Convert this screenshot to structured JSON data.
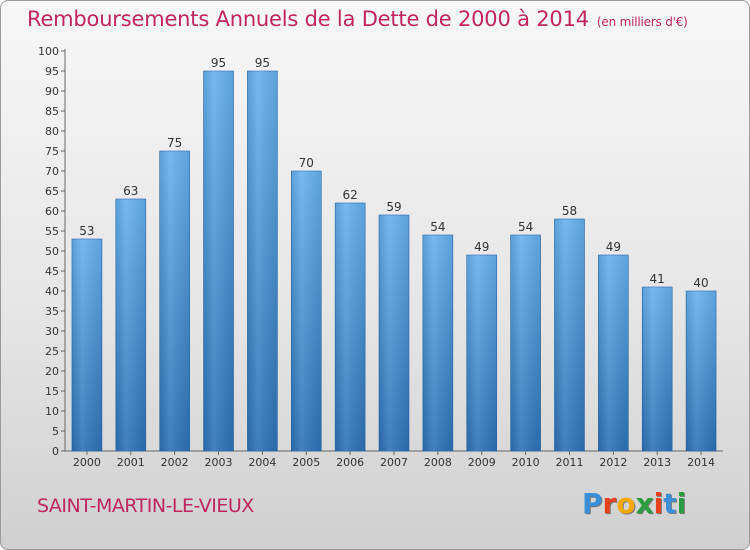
{
  "header": {
    "title": "Remboursements Annuels de la Dette de 2000 à 2014",
    "unit": "(en milliers d'€)"
  },
  "footer": {
    "town": "SAINT-MARTIN-LE-VIEUX",
    "logo_letters": [
      "P",
      "r",
      "o",
      "x",
      "i",
      "t",
      "i"
    ],
    "logo_colors": [
      "#3a8fd8",
      "#e8401c",
      "#f5a800",
      "#2a9d3f",
      "#e8401c",
      "#3a8fd8",
      "#2a9d3f"
    ]
  },
  "colors": {
    "bar_top": "#66b2ef",
    "bar_bottom": "#2c72b6",
    "accent": "#c0255f"
  },
  "chart_data": {
    "type": "bar",
    "categories": [
      "2000",
      "2001",
      "2002",
      "2003",
      "2004",
      "2005",
      "2006",
      "2007",
      "2008",
      "2009",
      "2010",
      "2011",
      "2012",
      "2013",
      "2014"
    ],
    "values": [
      53,
      63,
      75,
      95,
      95,
      70,
      62,
      59,
      54,
      49,
      54,
      58,
      49,
      41,
      40
    ],
    "ylim": [
      0,
      100
    ],
    "yticks": [
      0,
      5,
      10,
      15,
      20,
      25,
      30,
      35,
      40,
      45,
      50,
      55,
      60,
      65,
      70,
      75,
      80,
      85,
      90,
      95,
      100
    ],
    "grid": false
  }
}
